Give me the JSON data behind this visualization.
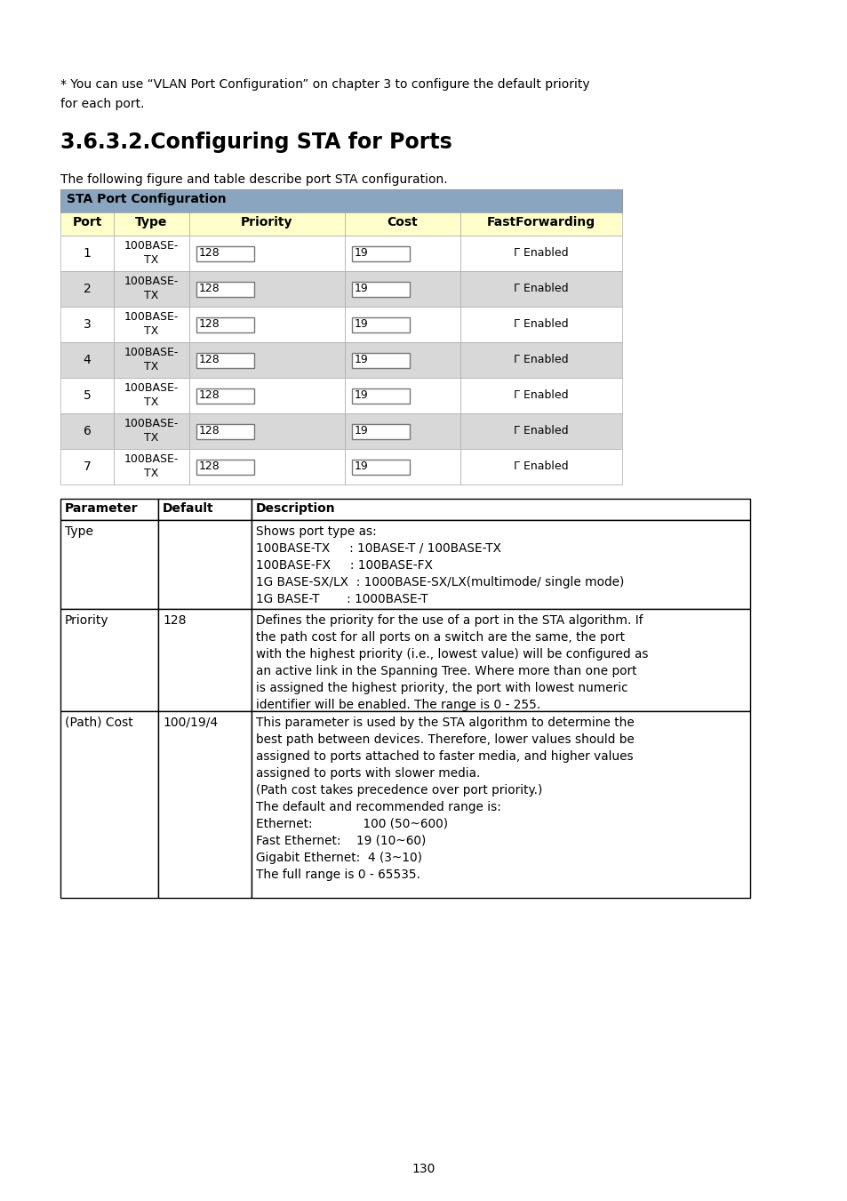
{
  "page_bg": "#ffffff",
  "intro_text": "* You can use “VLAN Port Configuration” on chapter 3 to configure the default priority\nfor each port.",
  "section_title": "3.6.3.2.Configuring STA for Ports",
  "sub_text": "The following figure and table describe port STA configuration.",
  "sta_header_bg": "#8aa5bf",
  "sta_header_text": "STA Port Configuration",
  "col_header_bg": "#ffffcc",
  "col_headers": [
    "Port",
    "Type",
    "Priority",
    "Cost",
    "FastForwarding"
  ],
  "row_bg_odd": "#ffffff",
  "row_bg_even": "#d8d8d8",
  "sta_rows": [
    [
      "1",
      "100BASE-\nTX",
      "128",
      "19",
      "Γ Enabled"
    ],
    [
      "2",
      "100BASE-\nTX",
      "128",
      "19",
      "Γ Enabled"
    ],
    [
      "3",
      "100BASE-\nTX",
      "128",
      "19",
      "Γ Enabled"
    ],
    [
      "4",
      "100BASE-\nTX",
      "128",
      "19",
      "Γ Enabled"
    ],
    [
      "5",
      "100BASE-\nTX",
      "128",
      "19",
      "Γ Enabled"
    ],
    [
      "6",
      "100BASE-\nTX",
      "128",
      "19",
      "Γ Enabled"
    ],
    [
      "7",
      "100BASE-\nTX",
      "128",
      "19",
      "Γ Enabled"
    ]
  ],
  "param_col_headers": [
    "Parameter",
    "Default",
    "Description"
  ],
  "param_rows": [
    {
      "param": "Type",
      "default": "",
      "desc": "Shows port type as:\n100BASE-TX     : 10BASE-T / 100BASE-TX\n100BASE-FX     : 100BASE-FX\n1G BASE-SX/LX  : 1000BASE-SX/LX(multimode/ single mode)\n1G BASE-T       : 1000BASE-T"
    },
    {
      "param": "Priority",
      "default": "128",
      "desc": "Defines the priority for the use of a port in the STA algorithm. If\nthe path cost for all ports on a switch are the same, the port\nwith the highest priority (i.e., lowest value) will be configured as\nan active link in the Spanning Tree. Where more than one port\nis assigned the highest priority, the port with lowest numeric\nidentifier will be enabled. The range is 0 - 255."
    },
    {
      "param": "(Path) Cost",
      "default": "100/19/4",
      "desc": "This parameter is used by the STA algorithm to determine the\nbest path between devices. Therefore, lower values should be\nassigned to ports attached to faster media, and higher values\nassigned to ports with slower media.\n(Path cost takes precedence over port priority.)\nThe default and recommended range is:\nEthernet:             100 (50~600)\nFast Ethernet:    19 (10~60)\nGigabit Ethernet:  4 (3~10)\nThe full range is 0 - 65535."
    }
  ],
  "page_number": "130"
}
